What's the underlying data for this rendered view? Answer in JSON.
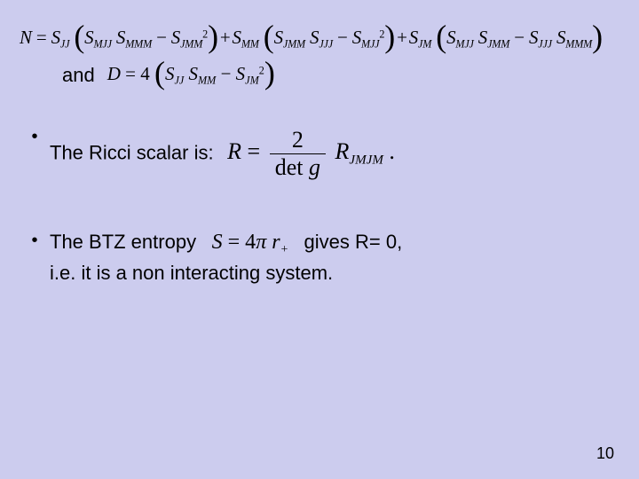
{
  "background_color": "#ccccee",
  "text_color": "#000000",
  "font_body": "Arial",
  "font_math": "Times New Roman",
  "long_eq": {
    "lhs": "N",
    "groups": [
      {
        "coef_sub": "JJ",
        "a_sub": "MJJ",
        "b_sub": "MMM",
        "c_sub": "JMM"
      },
      {
        "coef_sub": "MM",
        "a_sub": "JMM",
        "b_sub": "JJJ",
        "c_sub": "MJJ"
      },
      {
        "coef_sub": "JM",
        "a_sub": "MJJ",
        "b_sub": "JMM",
        "c_sub": "JJJ",
        "c2_sub": "MMM"
      }
    ],
    "base": "S"
  },
  "and_label": "and",
  "D_eq": {
    "lhs": "D",
    "factor": "4",
    "a_sub": "JJ",
    "b_sub": "MM",
    "c_sub": "JM",
    "base": "S"
  },
  "ricci": {
    "label": "The Ricci scalar is:",
    "lhs": "R",
    "num": "2",
    "den_prefix": "det ",
    "den_var": "g",
    "rhs_base": "R",
    "rhs_sub": "JMJM",
    "period": "."
  },
  "btz": {
    "label_before": "The BTZ entropy",
    "S_lhs": "S",
    "eq_rhs_coeff": "4",
    "eq_rhs_pi": "π",
    "eq_rhs_var": "r",
    "eq_rhs_sub": "+",
    "label_after": "gives  R= 0,",
    "line2": "i.e. it is a non interacting system."
  },
  "page_number": "10"
}
